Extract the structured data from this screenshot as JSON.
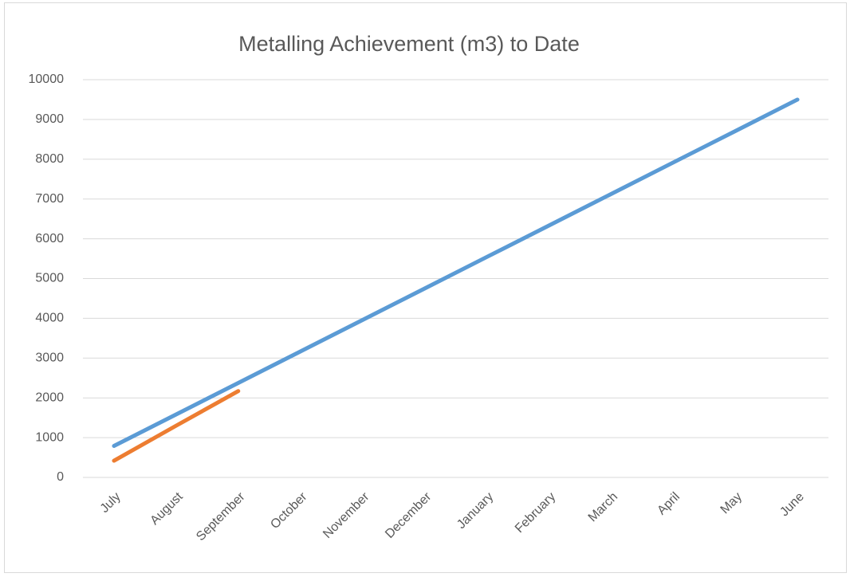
{
  "chart_data": {
    "type": "line",
    "title": "Metalling Achievement  (m3) to Date",
    "categories": [
      "July",
      "August",
      "September",
      "October",
      "November",
      "December",
      "January",
      "February",
      "March",
      "April",
      "May",
      "June"
    ],
    "series": [
      {
        "color": "#5b9bd5",
        "values": [
          792,
          1583,
          2375,
          3167,
          3958,
          4750,
          5542,
          6333,
          7125,
          7917,
          8708,
          9500
        ]
      },
      {
        "color": "#ed7d31",
        "values": [
          420,
          1300,
          2170,
          null,
          null,
          null,
          null,
          null,
          null,
          null,
          null,
          null
        ]
      }
    ],
    "ylim": [
      0,
      10000
    ],
    "yticks": [
      0,
      1000,
      2000,
      3000,
      4000,
      5000,
      6000,
      7000,
      8000,
      9000,
      10000
    ],
    "grid": true
  }
}
